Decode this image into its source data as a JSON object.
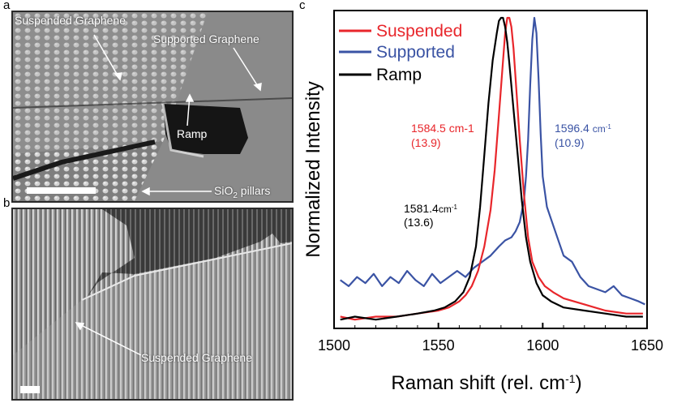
{
  "panels": {
    "a": "a",
    "b": "b",
    "c": "c"
  },
  "sem_a": {
    "labels": {
      "suspended": "Suspended Graphene",
      "supported": "Supported Graphene",
      "ramp": "Ramp",
      "pillars_prefix": "SiO",
      "pillars_sub": "2",
      "pillars_suffix": " pillars"
    }
  },
  "sem_b": {
    "labels": {
      "suspended": "Suspended Graphene"
    }
  },
  "colors": {
    "suspended": "#e8262b",
    "supported": "#3a53a4",
    "ramp": "#000000"
  },
  "chart_data": {
    "type": "line",
    "xlabel_main": "Raman shift (rel. cm",
    "xlabel_sup": "-1",
    "xlabel_close": ")",
    "ylabel": "Normalized Intensity",
    "xlim": [
      1500,
      1650
    ],
    "ylim": [
      0,
      1
    ],
    "xticks": [
      "1500",
      "1550",
      "1600",
      "1650"
    ],
    "legend_position": "top-left",
    "series": [
      {
        "name": "Suspended",
        "color": "#e8262b",
        "peak_label": "1584.5 cm-1",
        "fwhm_label": "(13.9)",
        "x": [
          1503,
          1510,
          1520,
          1530,
          1540,
          1550,
          1555,
          1560,
          1563,
          1566,
          1569,
          1572,
          1575,
          1577,
          1579,
          1581,
          1582,
          1583,
          1584,
          1585,
          1586,
          1587,
          1589,
          1591,
          1593,
          1595,
          1598,
          1601,
          1605,
          1610,
          1620,
          1630,
          1640,
          1648
        ],
        "y": [
          0.02,
          0.01,
          0.02,
          0.02,
          0.03,
          0.04,
          0.05,
          0.07,
          0.09,
          0.12,
          0.17,
          0.25,
          0.37,
          0.5,
          0.68,
          0.86,
          0.95,
          1.0,
          1.0,
          0.97,
          0.9,
          0.8,
          0.6,
          0.42,
          0.28,
          0.2,
          0.15,
          0.12,
          0.1,
          0.08,
          0.06,
          0.04,
          0.03,
          0.03
        ]
      },
      {
        "name": "Supported",
        "color": "#3a53a4",
        "peak_label": "1596.4",
        "peak_unit": "cm",
        "peak_unit_sup": "-1",
        "fwhm_label": "(10.9)",
        "x": [
          1503,
          1507,
          1511,
          1515,
          1519,
          1523,
          1527,
          1531,
          1535,
          1539,
          1543,
          1547,
          1551,
          1555,
          1559,
          1563,
          1567,
          1571,
          1575,
          1579,
          1582,
          1585,
          1587,
          1589,
          1591,
          1592,
          1593,
          1594,
          1595,
          1596,
          1597,
          1598,
          1599,
          1600,
          1602,
          1604,
          1607,
          1610,
          1614,
          1618,
          1622,
          1626,
          1630,
          1634,
          1638,
          1642,
          1646,
          1649
        ],
        "y": [
          0.14,
          0.12,
          0.15,
          0.13,
          0.16,
          0.12,
          0.15,
          0.13,
          0.17,
          0.14,
          0.12,
          0.16,
          0.13,
          0.15,
          0.17,
          0.15,
          0.18,
          0.2,
          0.22,
          0.25,
          0.27,
          0.28,
          0.3,
          0.33,
          0.4,
          0.48,
          0.6,
          0.78,
          0.93,
          1.0,
          0.95,
          0.8,
          0.62,
          0.48,
          0.38,
          0.34,
          0.28,
          0.22,
          0.2,
          0.15,
          0.12,
          0.11,
          0.1,
          0.12,
          0.09,
          0.08,
          0.07,
          0.06
        ]
      },
      {
        "name": "Ramp",
        "color": "#000000",
        "peak_label": "1581.4",
        "peak_unit": "cm",
        "peak_unit_sup": "-1",
        "fwhm_label": "(13.6)",
        "x": [
          1503,
          1510,
          1520,
          1530,
          1540,
          1548,
          1553,
          1558,
          1562,
          1565,
          1568,
          1570,
          1572,
          1574,
          1576,
          1578,
          1579,
          1580,
          1581,
          1582,
          1583,
          1584,
          1586,
          1588,
          1590,
          1592,
          1594,
          1597,
          1600,
          1604,
          1610,
          1620,
          1630,
          1640,
          1648
        ],
        "y": [
          0.01,
          0.02,
          0.01,
          0.02,
          0.03,
          0.04,
          0.05,
          0.07,
          0.1,
          0.15,
          0.25,
          0.38,
          0.55,
          0.72,
          0.86,
          0.95,
          0.99,
          1.0,
          1.0,
          0.97,
          0.92,
          0.85,
          0.7,
          0.55,
          0.4,
          0.28,
          0.2,
          0.13,
          0.09,
          0.07,
          0.05,
          0.04,
          0.03,
          0.02,
          0.02
        ]
      }
    ]
  }
}
